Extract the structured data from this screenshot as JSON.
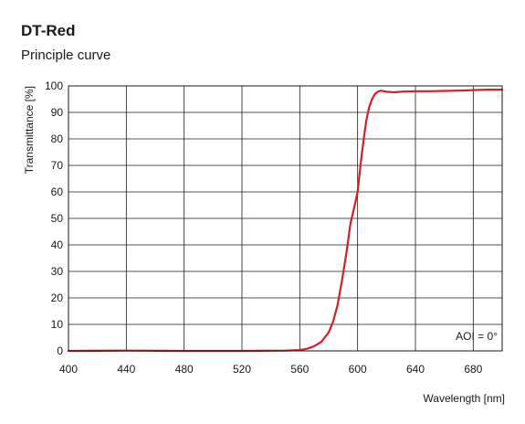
{
  "chart_data": {
    "type": "line",
    "title": "DT-Red",
    "subtitle": "Principle curve",
    "xlabel": "Wavelength [nm]",
    "ylabel": "Transmittance [%]",
    "annotation": "AOI = 0°",
    "xlim": [
      400,
      700
    ],
    "ylim": [
      0,
      100
    ],
    "xticks": [
      400,
      440,
      480,
      520,
      560,
      600,
      640,
      680
    ],
    "yticks": [
      0,
      10,
      20,
      30,
      40,
      50,
      60,
      70,
      80,
      90,
      100
    ],
    "grid": true,
    "line_color": "#d0202e",
    "series": [
      {
        "x": [
          400,
          440,
          480,
          520,
          550,
          560,
          565,
          570,
          575,
          580,
          583,
          586,
          589,
          592,
          595,
          598,
          600,
          602,
          604,
          606,
          608,
          610,
          612,
          614,
          616,
          618,
          620,
          625,
          630,
          640,
          650,
          660,
          670,
          680,
          690,
          700
        ],
        "y": [
          0,
          0.1,
          0,
          0,
          0.1,
          0.3,
          0.8,
          1.8,
          3.5,
          7,
          11,
          17,
          26,
          36,
          48,
          55,
          60,
          70,
          79,
          87,
          92,
          95,
          97,
          97.8,
          98.2,
          98,
          97.8,
          97.6,
          97.8,
          98,
          98,
          98.1,
          98.2,
          98.4,
          98.6,
          98.6
        ]
      }
    ]
  }
}
